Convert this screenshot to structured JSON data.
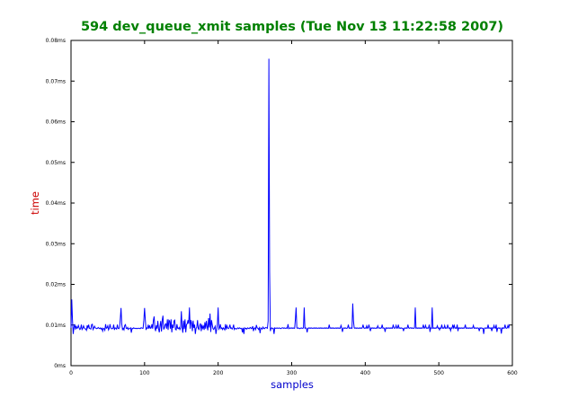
{
  "colors": {
    "title": "#008000",
    "xlabel": "#0000cc",
    "ylabel": "#cc0000",
    "series": "#0000ff",
    "axes": "#000000",
    "background": "#ffffff"
  },
  "chart_data": {
    "type": "line",
    "title": "594 dev_queue_xmit samples (Tue Nov 13 11:22:58 2007)",
    "xlabel": "samples",
    "ylabel": "time",
    "xlim": [
      0,
      600
    ],
    "ylim": [
      0,
      0.08
    ],
    "grid": false,
    "x_ticks": [
      {
        "value": 0,
        "label": "0"
      },
      {
        "value": 100,
        "label": "100"
      },
      {
        "value": 200,
        "label": "200"
      },
      {
        "value": 300,
        "label": "300"
      },
      {
        "value": 400,
        "label": "400"
      },
      {
        "value": 500,
        "label": "500"
      },
      {
        "value": 600,
        "label": "600"
      }
    ],
    "y_ticks": [
      {
        "value": 0,
        "label": "0ms"
      },
      {
        "value": 0.01,
        "label": "0.01ms"
      },
      {
        "value": 0.02,
        "label": "0.02ms"
      },
      {
        "value": 0.03,
        "label": "0.03ms"
      },
      {
        "value": 0.04,
        "label": "0.04ms"
      },
      {
        "value": 0.05,
        "label": "0.05ms"
      },
      {
        "value": 0.06,
        "label": "0.06ms"
      },
      {
        "value": 0.07,
        "label": "0.07ms"
      },
      {
        "value": 0.08,
        "label": "0.08ms"
      }
    ],
    "series": [
      {
        "values": [
          0.0093,
          0.0163,
          0.0112,
          0.0078,
          0.0094,
          0.0102,
          0.0089,
          0.0098,
          0.0092,
          0.0093,
          0.0099,
          0.0093,
          0.0089,
          0.0091,
          0.0101,
          0.0089,
          0.0092,
          0.0098,
          0.0093,
          0.0091,
          0.009,
          0.0087,
          0.0099,
          0.0093,
          0.0101,
          0.0092,
          0.0091,
          0.009,
          0.0101,
          0.0102,
          0.0089,
          0.0093,
          0.0097,
          0.0093,
          0.0092,
          0.0091,
          0.0092,
          0.0094,
          0.0092,
          0.0091,
          0.0093,
          0.009,
          0.0092,
          0.0085,
          0.0092,
          0.0091,
          0.0087,
          0.0102,
          0.0092,
          0.0093,
          0.0098,
          0.0088,
          0.0092,
          0.0102,
          0.0093,
          0.0091,
          0.0091,
          0.0092,
          0.0101,
          0.0088,
          0.0093,
          0.0092,
          0.009,
          0.0101,
          0.0092,
          0.0091,
          0.0094,
          0.0115,
          0.0142,
          0.0102,
          0.0089,
          0.0092,
          0.0088,
          0.0099,
          0.0101,
          0.0092,
          0.0091,
          0.0094,
          0.0089,
          0.0091,
          0.0092,
          0.0093,
          0.0081,
          0.0092,
          0.0091,
          0.0093,
          0.0092,
          0.0092,
          0.0091,
          0.0092,
          0.0091,
          0.0092,
          0.0092,
          0.0092,
          0.0091,
          0.0093,
          0.0093,
          0.0092,
          0.0092,
          0.0112,
          0.0142,
          0.0113,
          0.0088,
          0.0093,
          0.0092,
          0.0101,
          0.0091,
          0.0099,
          0.0092,
          0.0093,
          0.0102,
          0.0091,
          0.0112,
          0.0121,
          0.0093,
          0.0085,
          0.0099,
          0.0091,
          0.011,
          0.0091,
          0.0082,
          0.0098,
          0.011,
          0.0084,
          0.0112,
          0.0123,
          0.0089,
          0.0093,
          0.0101,
          0.0103,
          0.0091,
          0.0114,
          0.0088,
          0.0112,
          0.011,
          0.0091,
          0.0114,
          0.0082,
          0.0101,
          0.0093,
          0.011,
          0.0112,
          0.0089,
          0.0088,
          0.0102,
          0.0092,
          0.0091,
          0.0094,
          0.0089,
          0.0093,
          0.0134,
          0.0094,
          0.0081,
          0.0111,
          0.009,
          0.0114,
          0.0082,
          0.0101,
          0.0103,
          0.0112,
          0.0103,
          0.0143,
          0.0091,
          0.0112,
          0.0105,
          0.0085,
          0.0111,
          0.0093,
          0.0101,
          0.0078,
          0.0092,
          0.0094,
          0.0112,
          0.0091,
          0.0089,
          0.0099,
          0.0104,
          0.0085,
          0.0101,
          0.0092,
          0.0097,
          0.0088,
          0.0107,
          0.0091,
          0.011,
          0.0096,
          0.0087,
          0.0117,
          0.0094,
          0.0128,
          0.0083,
          0.0112,
          0.0101,
          0.0091,
          0.0089,
          0.0093,
          0.0097,
          0.0078,
          0.0089,
          0.0102,
          0.0143,
          0.009,
          0.0093,
          0.0102,
          0.0091,
          0.0093,
          0.0089,
          0.0093,
          0.0091,
          0.0088,
          0.0102,
          0.0089,
          0.0098,
          0.0093,
          0.0091,
          0.0093,
          0.0101,
          0.0092,
          0.0093,
          0.009,
          0.0093,
          0.0101,
          0.0089,
          0.0092,
          0.0091,
          0.009,
          0.0092,
          0.0093,
          0.0091,
          0.0093,
          0.0092,
          0.0091,
          0.0092,
          0.0082,
          0.0093,
          0.0078,
          0.0093,
          0.0091,
          0.0092,
          0.009,
          0.0093,
          0.0092,
          0.0091,
          0.0093,
          0.0094,
          0.0091,
          0.0092,
          0.0097,
          0.0085,
          0.0092,
          0.0093,
          0.0089,
          0.01,
          0.0093,
          0.0092,
          0.0089,
          0.0093,
          0.008,
          0.0093,
          0.0092,
          0.009,
          0.0095,
          0.0092,
          0.0091,
          0.0093,
          0.0094,
          0.0093,
          0.0092,
          0.011,
          0.0755,
          0.023,
          0.0085,
          0.0092,
          0.0093,
          0.0091,
          0.0092,
          0.0078,
          0.0093,
          0.0092,
          0.0092,
          0.0093,
          0.0092,
          0.0092,
          0.0093,
          0.0092,
          0.0091,
          0.0092,
          0.0093,
          0.0093,
          0.0092,
          0.0093,
          0.0092,
          0.0092,
          0.0093,
          0.0092,
          0.0102,
          0.0091,
          0.0092,
          0.0093,
          0.0092,
          0.0093,
          0.0092,
          0.0093,
          0.0092,
          0.0092,
          0.0114,
          0.0143,
          0.0093,
          0.0092,
          0.0093,
          0.0092,
          0.0091,
          0.0092,
          0.0093,
          0.0092,
          0.0092,
          0.0093,
          0.0143,
          0.0092,
          0.0093,
          0.0092,
          0.0082,
          0.0092,
          0.0093,
          0.0092,
          0.0093,
          0.0092,
          0.0093,
          0.0092,
          0.0092,
          0.0093,
          0.0092,
          0.0093,
          0.0092,
          0.0093,
          0.0092,
          0.0092,
          0.0093,
          0.0092,
          0.0093,
          0.0092,
          0.0093,
          0.0092,
          0.0092,
          0.0093,
          0.0092,
          0.0093,
          0.0092,
          0.0093,
          0.0092,
          0.0092,
          0.0101,
          0.0092,
          0.0093,
          0.0092,
          0.0093,
          0.0092,
          0.0093,
          0.0092,
          0.0092,
          0.0093,
          0.0092,
          0.0093,
          0.0092,
          0.0093,
          0.0092,
          0.0092,
          0.0099,
          0.0093,
          0.0083,
          0.0092,
          0.0093,
          0.0092,
          0.0093,
          0.0092,
          0.0092,
          0.0093,
          0.0101,
          0.0092,
          0.0093,
          0.0092,
          0.0093,
          0.0092,
          0.0153,
          0.011,
          0.0093,
          0.0092,
          0.0093,
          0.0092,
          0.0093,
          0.0092,
          0.0092,
          0.0093,
          0.0092,
          0.0093,
          0.0092,
          0.0093,
          0.0101,
          0.0093,
          0.0092,
          0.0093,
          0.0092,
          0.0098,
          0.0092,
          0.0093,
          0.0101,
          0.0092,
          0.0085,
          0.0093,
          0.0092,
          0.0093,
          0.0092,
          0.0093,
          0.0092,
          0.0092,
          0.0093,
          0.0092,
          0.0098,
          0.0093,
          0.0092,
          0.0093,
          0.0092,
          0.0093,
          0.0101,
          0.0092,
          0.0093,
          0.0092,
          0.0083,
          0.0093,
          0.0092,
          0.0093,
          0.0092,
          0.0093,
          0.0092,
          0.0093,
          0.0092,
          0.0093,
          0.0092,
          0.0101,
          0.0093,
          0.0092,
          0.0093,
          0.0099,
          0.0092,
          0.0093,
          0.0101,
          0.0092,
          0.0093,
          0.0092,
          0.0093,
          0.0092,
          0.0092,
          0.0085,
          0.0092,
          0.0093,
          0.0092,
          0.0093,
          0.0092,
          0.0101,
          0.0093,
          0.0092,
          0.0093,
          0.0093,
          0.0092,
          0.0093,
          0.0092,
          0.0092,
          0.0093,
          0.0143,
          0.0092,
          0.0093,
          0.0092,
          0.0093,
          0.0092,
          0.0093,
          0.0092,
          0.0093,
          0.0092,
          0.0093,
          0.0101,
          0.0092,
          0.0093,
          0.0099,
          0.0092,
          0.0093,
          0.0092,
          0.0093,
          0.0101,
          0.0083,
          0.0093,
          0.0092,
          0.0143,
          0.0092,
          0.0093,
          0.0092,
          0.0093,
          0.0092,
          0.0093,
          0.0098,
          0.0092,
          0.0093,
          0.0088,
          0.0093,
          0.0092,
          0.0101,
          0.0092,
          0.0093,
          0.0092,
          0.0099,
          0.0092,
          0.0093,
          0.0092,
          0.0101,
          0.0093,
          0.0092,
          0.0093,
          0.0086,
          0.0093,
          0.0092,
          0.0101,
          0.0093,
          0.0099,
          0.0092,
          0.0093,
          0.0092,
          0.0101,
          0.0085,
          0.0093,
          0.0092,
          0.0093,
          0.0092,
          0.0093,
          0.0092,
          0.0093,
          0.0092,
          0.0093,
          0.0101,
          0.0092,
          0.0093,
          0.0092,
          0.0093,
          0.0092,
          0.0093,
          0.0092,
          0.0093,
          0.0092,
          0.0093,
          0.0099,
          0.0092,
          0.0093,
          0.0092,
          0.0093,
          0.0092,
          0.0093,
          0.0092,
          0.0085,
          0.0093,
          0.0092,
          0.0093,
          0.0092,
          0.0092,
          0.0078,
          0.0092,
          0.0093,
          0.0092,
          0.0093,
          0.0092,
          0.0101,
          0.0092,
          0.0093,
          0.0092,
          0.0093,
          0.0085,
          0.0093,
          0.0092,
          0.0099,
          0.0093,
          0.0092,
          0.0101,
          0.0083,
          0.0092,
          0.0093,
          0.0092,
          0.0093,
          0.0092,
          0.0079,
          0.0093,
          0.0092,
          0.0093,
          0.0092,
          0.0101,
          0.0093,
          0.0092,
          0.0093,
          0.0099,
          0.0092,
          0.0101
        ]
      }
    ]
  }
}
